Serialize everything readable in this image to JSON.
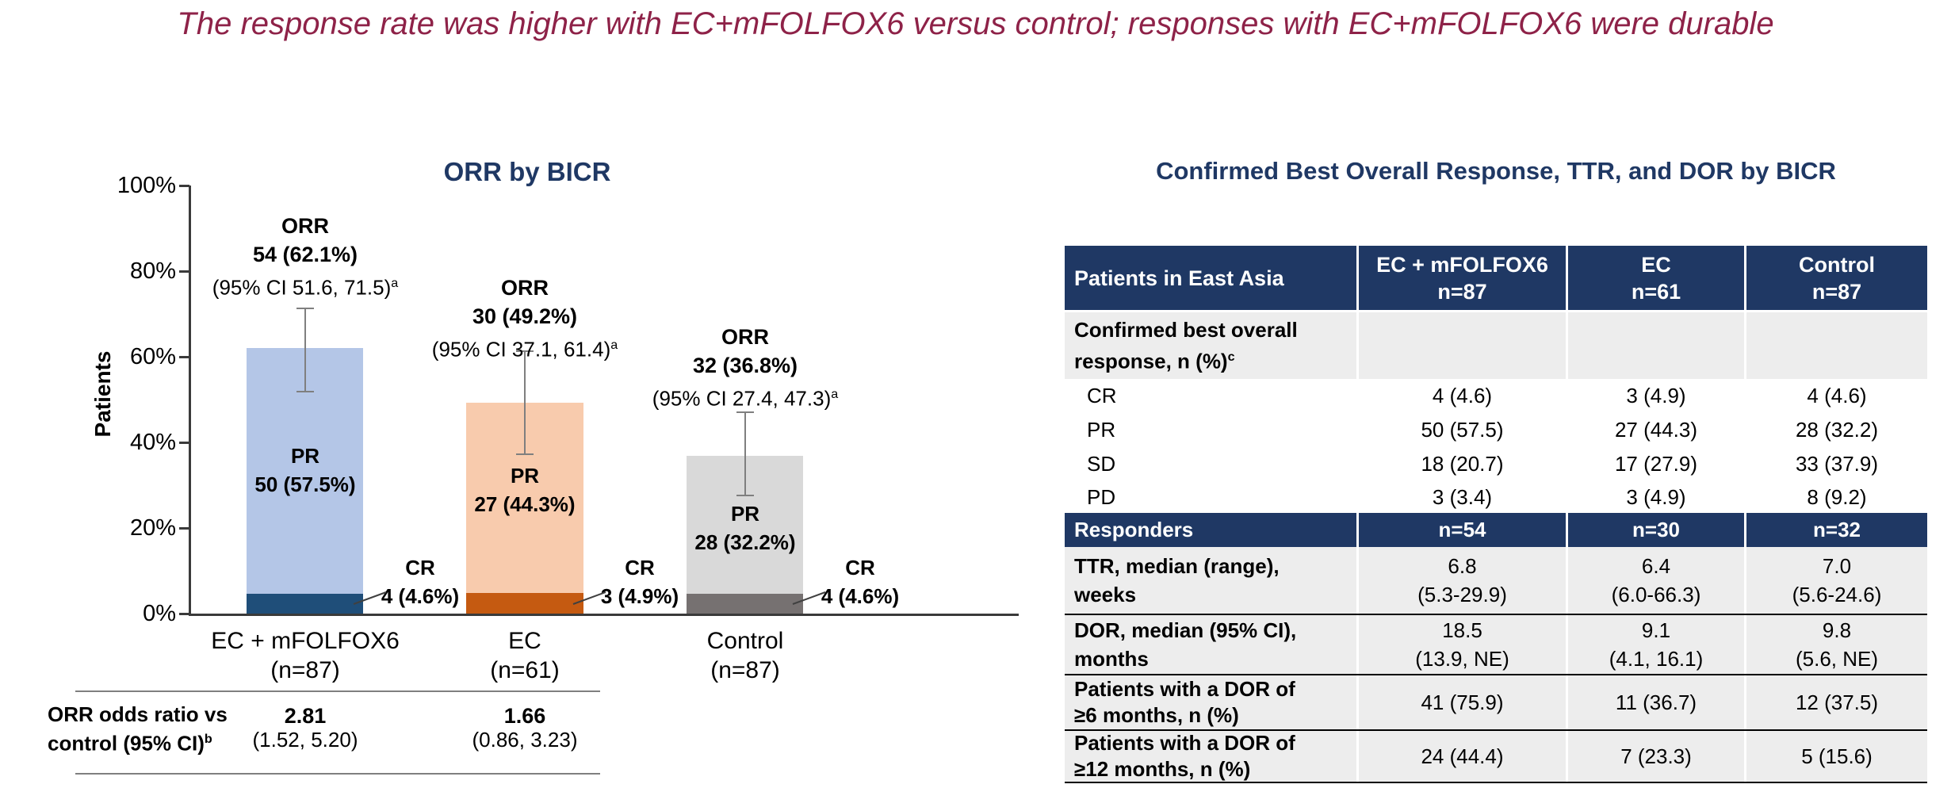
{
  "slide_title": "The response rate was higher with EC+mFOLFOX6 versus control; responses with EC+mFOLFOX6 were durable",
  "colors": {
    "navy": "#1F3864",
    "maroon_title": "#8E2248",
    "axis": "#3A3A3A",
    "error_bar": "#7F7F7F",
    "table_row_gray": "#EDEDED",
    "bar1_pr": "#B4C6E7",
    "bar1_cr": "#1F4E79",
    "bar2_pr": "#F8CBAD",
    "bar2_cr": "#C55A11",
    "bar3_pr": "#D9D9D9",
    "bar3_cr": "#767171"
  },
  "orr_chart": {
    "title": "ORR by BICR",
    "y_axis_label": "Patients",
    "y_ticks": [
      "100%",
      "80%",
      "60%",
      "40%",
      "20%",
      "0%"
    ],
    "bars": [
      {
        "ann_line1": "ORR",
        "ann_line2": "54 (62.1%)",
        "ann_line3": "(95% CI 51.6, 71.5)",
        "ann_sup": "a",
        "pr_line1": "PR",
        "pr_line2": "50 (57.5%)",
        "cr_line1": "CR",
        "cr_line2": "4 (4.6%)",
        "group_line1": "EC + mFOLFOX6",
        "group_line2": "(n=87)"
      },
      {
        "ann_line1": "ORR",
        "ann_line2": "30 (49.2%)",
        "ann_line3": "(95% CI 37.1, 61.4)",
        "ann_sup": "a",
        "pr_line1": "PR",
        "pr_line2": "27 (44.3%)",
        "cr_line1": "CR",
        "cr_line2": "3 (4.9%)",
        "group_line1": "EC",
        "group_line2": "(n=61)"
      },
      {
        "ann_line1": "ORR",
        "ann_line2": "32 (36.8%)",
        "ann_line3": "(95% CI 27.4, 47.3)",
        "ann_sup": "a",
        "pr_line1": "PR",
        "pr_line2": "28 (32.2%)",
        "cr_line1": "CR",
        "cr_line2": "4 (4.6%)",
        "group_line1": "Control",
        "group_line2": "(n=87)"
      }
    ],
    "odds_label_line1": "ORR odds ratio vs",
    "odds_label_line2": "control (95% CI)",
    "odds_label_sup": "b",
    "odds": [
      {
        "value": "2.81",
        "ci": "(1.52, 5.20)"
      },
      {
        "value": "1.66",
        "ci": "(0.86, 3.23)"
      }
    ]
  },
  "response_table": {
    "title": "Confirmed Best Overall Response, TTR, and DOR by BICR",
    "header": {
      "label": "Patients in East Asia",
      "col1_line1": "EC + mFOLFOX6",
      "col1_line2": "n=87",
      "col2_line1": "EC",
      "col2_line2": "n=61",
      "col3_line1": "Control",
      "col3_line2": "n=87"
    },
    "rows": [
      {
        "label1": "Confirmed best overall",
        "label2": "response, n (%)",
        "label2_sup": "c",
        "v1": "",
        "v2": "",
        "v3": ""
      },
      {
        "label1": "CR",
        "v1": "4 (4.6)",
        "v2": "3 (4.9)",
        "v3": "4 (4.6)"
      },
      {
        "label1": "PR",
        "v1": "50 (57.5)",
        "v2": "27 (44.3)",
        "v3": "28 (32.2)"
      },
      {
        "label1": "SD",
        "v1": "18 (20.7)",
        "v2": "17 (27.9)",
        "v3": "33 (37.9)"
      },
      {
        "label1": "PD",
        "v1": "3 (3.4)",
        "v2": "3 (4.9)",
        "v3": "8 (9.2)"
      },
      {
        "label1": "Responders",
        "v1": "n=54",
        "v2": "n=30",
        "v3": "n=32"
      },
      {
        "label1": "TTR, median (range),",
        "label2": "weeks",
        "v1a": "6.8",
        "v1b": "(5.3-29.9)",
        "v2a": "6.4",
        "v2b": "(6.0-66.3)",
        "v3a": "7.0",
        "v3b": "(5.6-24.6)"
      },
      {
        "label1": "DOR, median (95% CI),",
        "label2": "months",
        "v1a": "18.5",
        "v1b": "(13.9, NE)",
        "v2a": "9.1",
        "v2b": "(4.1, 16.1)",
        "v3a": "9.8",
        "v3b": "(5.6, NE)"
      },
      {
        "label1": "Patients with a DOR of",
        "label2": "≥6 months, n (%)",
        "v1": "41 (75.9)",
        "v2": "11 (36.7)",
        "v3": "12 (37.5)"
      },
      {
        "label1": "Patients with a DOR of",
        "label2": "≥12 months, n (%)",
        "v1": "24 (44.4)",
        "v2": "7 (23.3)",
        "v3": "5 (15.6)"
      }
    ]
  },
  "chart_data": [
    {
      "type": "bar",
      "stacked": true,
      "title": "ORR by BICR",
      "xlabel": "",
      "ylabel": "Patients",
      "ylim": [
        0,
        100
      ],
      "ytick_labels": [
        "0%",
        "20%",
        "40%",
        "60%",
        "80%",
        "100%"
      ],
      "grid": false,
      "legend": "none",
      "categories": [
        "EC + mFOLFOX6 (n=87)",
        "EC (n=61)",
        "Control (n=87)"
      ],
      "series": [
        {
          "name": "CR",
          "values_pct": [
            4.6,
            4.9,
            4.6
          ],
          "counts": [
            4,
            3,
            4
          ],
          "colors": [
            "#1F4E79",
            "#C55A11",
            "#767171"
          ]
        },
        {
          "name": "PR",
          "values_pct": [
            57.5,
            44.3,
            32.2
          ],
          "counts": [
            50,
            27,
            28
          ],
          "colors": [
            "#B4C6E7",
            "#F8CBAD",
            "#D9D9D9"
          ]
        }
      ],
      "orr": {
        "counts": [
          54,
          30,
          32
        ],
        "pct": [
          62.1,
          49.2,
          36.8
        ],
        "ci95": [
          [
            51.6,
            71.5
          ],
          [
            37.1,
            61.4
          ],
          [
            27.4,
            47.3
          ]
        ]
      },
      "error_bars": true,
      "odds_ratio_vs_control": [
        {
          "group": "EC + mFOLFOX6",
          "value": 2.81,
          "ci95": [
            1.52,
            5.2
          ]
        },
        {
          "group": "EC",
          "value": 1.66,
          "ci95": [
            0.86,
            3.23
          ]
        }
      ]
    },
    {
      "type": "table",
      "title": "Confirmed Best Overall Response, TTR, and DOR by BICR",
      "columns": [
        "Patients in East Asia",
        "EC + mFOLFOX6 n=87",
        "EC n=61",
        "Control n=87"
      ],
      "rows": [
        [
          "Confirmed best overall response, n (%)c",
          "",
          "",
          ""
        ],
        [
          "CR",
          "4 (4.6)",
          "3 (4.9)",
          "4 (4.6)"
        ],
        [
          "PR",
          "50 (57.5)",
          "27 (44.3)",
          "28 (32.2)"
        ],
        [
          "SD",
          "18 (20.7)",
          "17 (27.9)",
          "33 (37.9)"
        ],
        [
          "PD",
          "3 (3.4)",
          "3 (4.9)",
          "8 (9.2)"
        ],
        [
          "Responders",
          "n=54",
          "n=30",
          "n=32"
        ],
        [
          "TTR, median (range), weeks",
          "6.8 (5.3-29.9)",
          "6.4 (6.0-66.3)",
          "7.0 (5.6-24.6)"
        ],
        [
          "DOR, median (95% CI), months",
          "18.5 (13.9, NE)",
          "9.1 (4.1, 16.1)",
          "9.8 (5.6, NE)"
        ],
        [
          "Patients with a DOR of ≥6 months, n (%)",
          "41 (75.9)",
          "11 (36.7)",
          "12 (37.5)"
        ],
        [
          "Patients with a DOR of ≥12 months, n (%)",
          "24 (44.4)",
          "7 (23.3)",
          "5 (15.6)"
        ]
      ]
    }
  ]
}
